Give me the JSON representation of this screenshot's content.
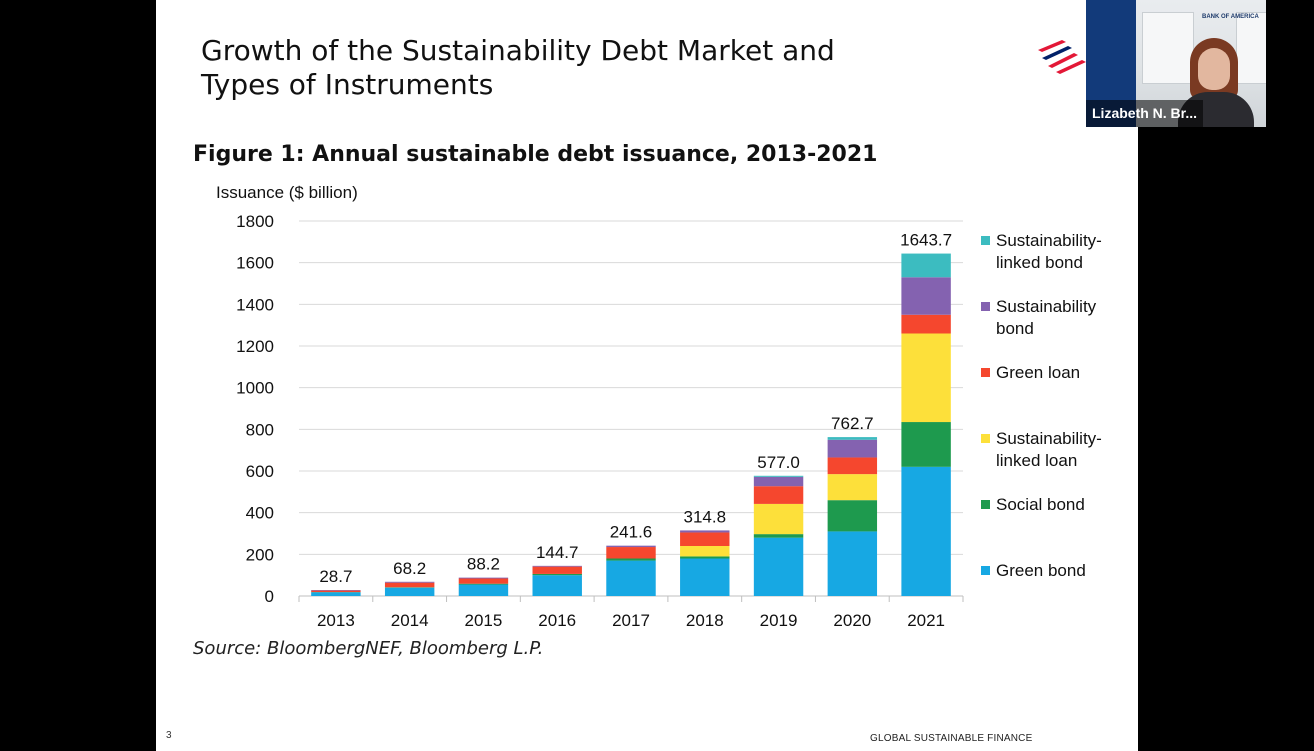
{
  "slide": {
    "title": "Growth of the Sustainability Debt Market and Types of Instruments",
    "figure_title": "Figure 1: Annual sustainable debt issuance, 2013-2021",
    "source": "Source: BloombergNEF, Bloomberg L.P.",
    "page_number": "3",
    "footer": "GLOBAL SUSTAINABLE FINANCE"
  },
  "video": {
    "participant_name": "Lizabeth N. Br...",
    "background_logo": "BANK OF AMERICA"
  },
  "colors": {
    "green_bond": "#17a8e3",
    "social_bond": "#1e9a4e",
    "sustainability_linked_loan": "#fde03a",
    "green_loan": "#f5472e",
    "sustainability_bond": "#8462b0",
    "sustainability_linked_bond": "#3cbcc0",
    "logo_red": "#e31837",
    "logo_blue": "#012169"
  },
  "chart_data": {
    "type": "bar",
    "stacked": true,
    "ylabel": "Issuance  ($ billion)",
    "ylim": [
      0,
      1800
    ],
    "yticks": [
      0,
      200,
      400,
      600,
      800,
      1000,
      1200,
      1400,
      1600,
      1800
    ],
    "grid": true,
    "legend_position": "right",
    "categories": [
      "2013",
      "2014",
      "2015",
      "2016",
      "2017",
      "2018",
      "2019",
      "2020",
      "2021"
    ],
    "totals": [
      "28.7",
      "68.2",
      "88.2",
      "144.7",
      "241.6",
      "314.8",
      "577.0",
      "762.7",
      "1643.7"
    ],
    "series": [
      {
        "name": "Green bond",
        "color": "#17a8e3",
        "values": [
          18,
          40,
          55,
          100,
          170,
          180,
          280,
          310,
          620
        ]
      },
      {
        "name": "Social bond",
        "color": "#1e9a4e",
        "values": [
          1,
          2,
          4,
          6,
          10,
          10,
          17,
          150,
          215
        ]
      },
      {
        "name": "Sustainability-linked loan",
        "color": "#fde03a",
        "values": [
          0,
          0,
          0,
          0,
          0,
          50,
          145,
          125,
          425
        ]
      },
      {
        "name": "Green loan",
        "color": "#f5472e",
        "values": [
          7,
          22,
          25,
          35,
          55,
          65,
          85,
          80,
          90
        ]
      },
      {
        "name": "Sustainability bond",
        "color": "#8462b0",
        "values": [
          2.7,
          4.2,
          4.2,
          3.7,
          6.6,
          9.8,
          45,
          85,
          180
        ]
      },
      {
        "name": "Sustainability-linked bond",
        "color": "#3cbcc0",
        "values": [
          0,
          0,
          0,
          0,
          0,
          0,
          5,
          12.7,
          113.7
        ]
      }
    ],
    "legend": [
      {
        "lines": [
          "Sustainability-",
          "linked bond"
        ],
        "color": "#3cbcc0"
      },
      {
        "lines": [
          "Sustainability",
          "bond"
        ],
        "color": "#8462b0"
      },
      {
        "lines": [
          "Green loan"
        ],
        "color": "#f5472e"
      },
      {
        "lines": [
          "Sustainability-",
          "linked loan"
        ],
        "color": "#fde03a"
      },
      {
        "lines": [
          "Social bond"
        ],
        "color": "#1e9a4e"
      },
      {
        "lines": [
          "Green bond"
        ],
        "color": "#17a8e3"
      }
    ]
  }
}
